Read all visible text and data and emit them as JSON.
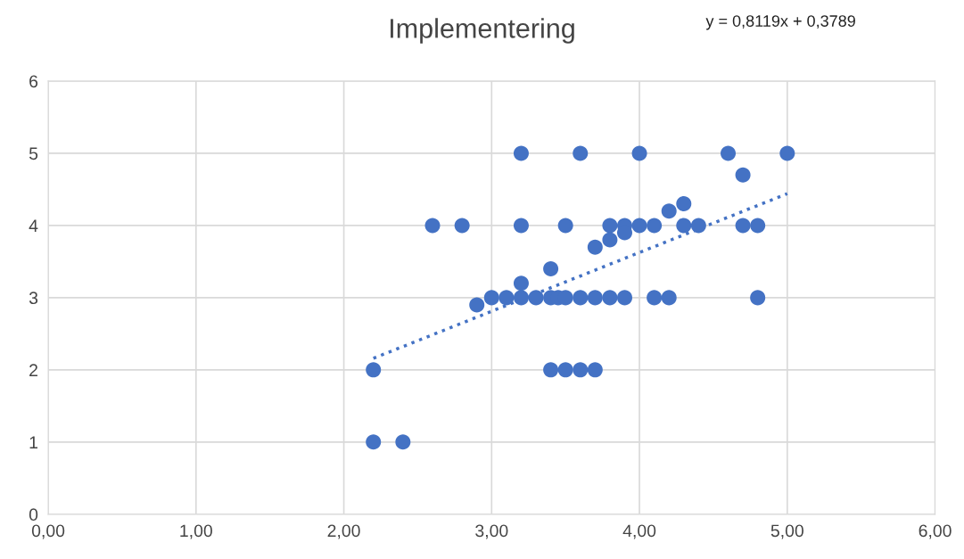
{
  "chart_data": {
    "type": "scatter",
    "title": "Implementering",
    "annotations": [
      "y = 0,8119x + 0,3789"
    ],
    "series": [
      {
        "color": "#4472c4",
        "marker": "circle",
        "x": [
          3.2,
          3.6,
          4.0,
          4.6,
          5.0,
          4.7,
          4.3,
          4.2,
          2.6,
          2.8,
          3.2,
          3.5,
          3.8,
          3.9,
          4.0,
          4.1,
          4.3,
          4.4,
          4.7,
          4.8,
          3.9,
          3.8,
          3.7,
          3.4,
          3.2,
          3.0,
          3.1,
          3.2,
          3.3,
          3.4,
          3.45,
          3.5,
          3.6,
          3.7,
          3.8,
          3.9,
          4.1,
          4.2,
          4.8,
          2.9,
          2.2,
          3.4,
          3.5,
          3.6,
          3.7,
          2.2,
          2.4
        ],
        "values": [
          5,
          5,
          5,
          5,
          5,
          4.7,
          4.3,
          4.2,
          4,
          4,
          4,
          4,
          4,
          4,
          4,
          4,
          4,
          4,
          4,
          4,
          3.9,
          3.8,
          3.7,
          3.4,
          3.2,
          3,
          3,
          3,
          3,
          3,
          3,
          3,
          3,
          3,
          3,
          3,
          3,
          3,
          3,
          2.9,
          2,
          2,
          2,
          2,
          2,
          1,
          1
        ]
      },
      {
        "type": "line",
        "color": "#4472c4",
        "line_style": "dotted",
        "marker": "none",
        "x": [
          2.2,
          5.0
        ],
        "values": [
          2.16,
          4.44
        ]
      }
    ],
    "xlim": [
      0,
      6
    ],
    "ylim": [
      0,
      6
    ],
    "xticks": [
      {
        "value": 0,
        "label": "0,00"
      },
      {
        "value": 1,
        "label": "1,00"
      },
      {
        "value": 2,
        "label": "2,00"
      },
      {
        "value": 3,
        "label": "3,00"
      },
      {
        "value": 4,
        "label": "4,00"
      },
      {
        "value": 5,
        "label": "5,00"
      },
      {
        "value": 6,
        "label": "6,00"
      }
    ],
    "yticks": [
      0,
      1,
      2,
      3,
      4,
      5,
      6
    ],
    "grid": true
  }
}
